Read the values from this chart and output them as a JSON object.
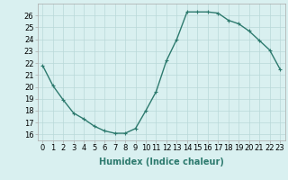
{
  "x": [
    0,
    1,
    2,
    3,
    4,
    5,
    6,
    7,
    8,
    9,
    10,
    11,
    12,
    13,
    14,
    15,
    16,
    17,
    18,
    19,
    20,
    21,
    22,
    23
  ],
  "y": [
    21.8,
    20.1,
    18.9,
    17.8,
    17.3,
    16.7,
    16.3,
    16.1,
    16.1,
    16.5,
    18.0,
    19.6,
    22.2,
    24.0,
    26.3,
    26.3,
    26.3,
    26.2,
    25.6,
    25.3,
    24.7,
    23.9,
    23.1,
    21.5
  ],
  "line_color": "#2d7a6e",
  "marker": "+",
  "markersize": 3,
  "linewidth": 1.0,
  "bg_color": "#d9f0f0",
  "grid_color": "#b8d8d8",
  "xlabel": "Humidex (Indice chaleur)",
  "xlabel_fontsize": 7,
  "tick_fontsize": 6,
  "xlim": [
    -0.5,
    23.5
  ],
  "ylim": [
    15.5,
    27.0
  ],
  "yticks": [
    16,
    17,
    18,
    19,
    20,
    21,
    22,
    23,
    24,
    25,
    26
  ],
  "xticks": [
    0,
    1,
    2,
    3,
    4,
    5,
    6,
    7,
    8,
    9,
    10,
    11,
    12,
    13,
    14,
    15,
    16,
    17,
    18,
    19,
    20,
    21,
    22,
    23
  ],
  "xtick_labels": [
    "0",
    "1",
    "2",
    "3",
    "4",
    "5",
    "6",
    "7",
    "8",
    "9",
    "10",
    "11",
    "12",
    "13",
    "14",
    "15",
    "16",
    "17",
    "18",
    "19",
    "20",
    "21",
    "22",
    "23"
  ]
}
